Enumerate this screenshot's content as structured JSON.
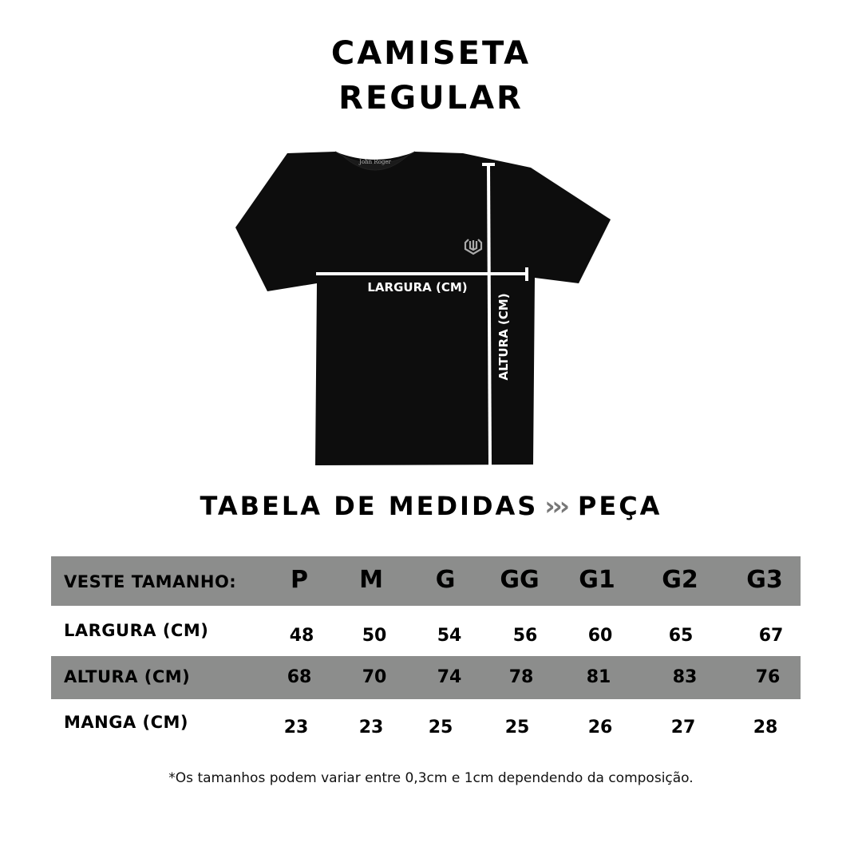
{
  "header": {
    "title_line1": "CAMISETA",
    "title_line2": "REGULAR"
  },
  "illustration": {
    "width_label": "LARGURA (CM)",
    "height_label": "ALTURA (CM)",
    "neck_label_logo_text": "John Roger",
    "shirt_color": "#0d0d0d",
    "measure_line_color": "#ffffff"
  },
  "table_title": {
    "left": "TABELA DE MEDIDAS",
    "arrows": "›››",
    "right": "PEÇA"
  },
  "table": {
    "header_label": "VESTE TAMANHO:",
    "sizes": [
      "P",
      "M",
      "G",
      "GG",
      "G1",
      "G2",
      "G3"
    ],
    "rows": [
      {
        "label": "LARGURA (CM)",
        "values": [
          "48",
          "50",
          "54",
          "56",
          "60",
          "65",
          "67"
        ]
      },
      {
        "label": "ALTURA (CM)",
        "values": [
          "68",
          "70",
          "74",
          "78",
          "81",
          "83",
          "76"
        ]
      },
      {
        "label": "MANGA (CM)",
        "values": [
          "23",
          "23",
          "25",
          "25",
          "26",
          "27",
          "28"
        ]
      }
    ],
    "stripe_color": "#8c8d8c"
  },
  "footnote": "*Os tamanhos podem variar entre 0,3cm e 1cm dependendo da composição."
}
